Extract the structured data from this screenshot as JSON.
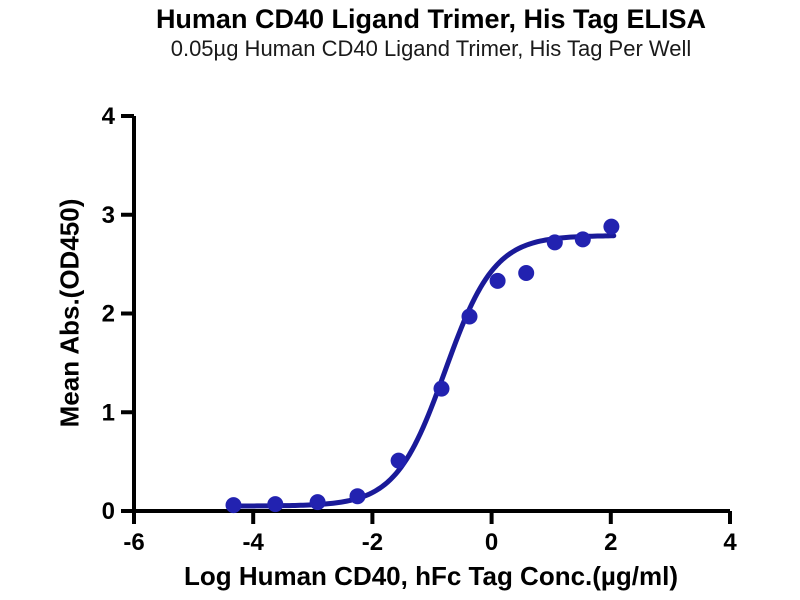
{
  "chart_data": {
    "type": "scatter",
    "title": "Human CD40 Ligand Trimer, His Tag ELISA",
    "subtitle": "0.05µg Human CD40 Ligand Trimer, His Tag Per Well",
    "xlabel": "Log Human CD40, hFc Tag Conc.(µg/ml)",
    "ylabel": "Mean Abs.(OD450)",
    "xlim": [
      -6,
      4
    ],
    "ylim": [
      0,
      4
    ],
    "x_ticks": [
      -6,
      -4,
      -2,
      0,
      2,
      4
    ],
    "y_ticks": [
      0,
      1,
      2,
      3,
      4
    ],
    "grid": false,
    "legend_position": "none",
    "series": [
      {
        "name": "Human CD40, hFc Tag",
        "x": [
          -4.33,
          -3.63,
          -2.92,
          -2.25,
          -1.56,
          -0.84,
          -0.37,
          0.1,
          0.58,
          1.06,
          1.53,
          2.01
        ],
        "y": [
          0.06,
          0.07,
          0.09,
          0.15,
          0.51,
          1.24,
          1.97,
          2.33,
          2.41,
          2.72,
          2.75,
          2.88
        ]
      }
    ],
    "fit_curve": {
      "model": "4PL",
      "bottom": 0.05,
      "top": 2.79,
      "log_ec50": -0.78,
      "hill": 1.05,
      "x_start": -4.35,
      "x_end": 2.05
    },
    "colors": {
      "marker": "#2222b0",
      "line": "#1a1a99",
      "axis": "#000000",
      "text": "#000000",
      "background": "#ffffff"
    },
    "marker_radius": 8,
    "line_width": 5
  }
}
